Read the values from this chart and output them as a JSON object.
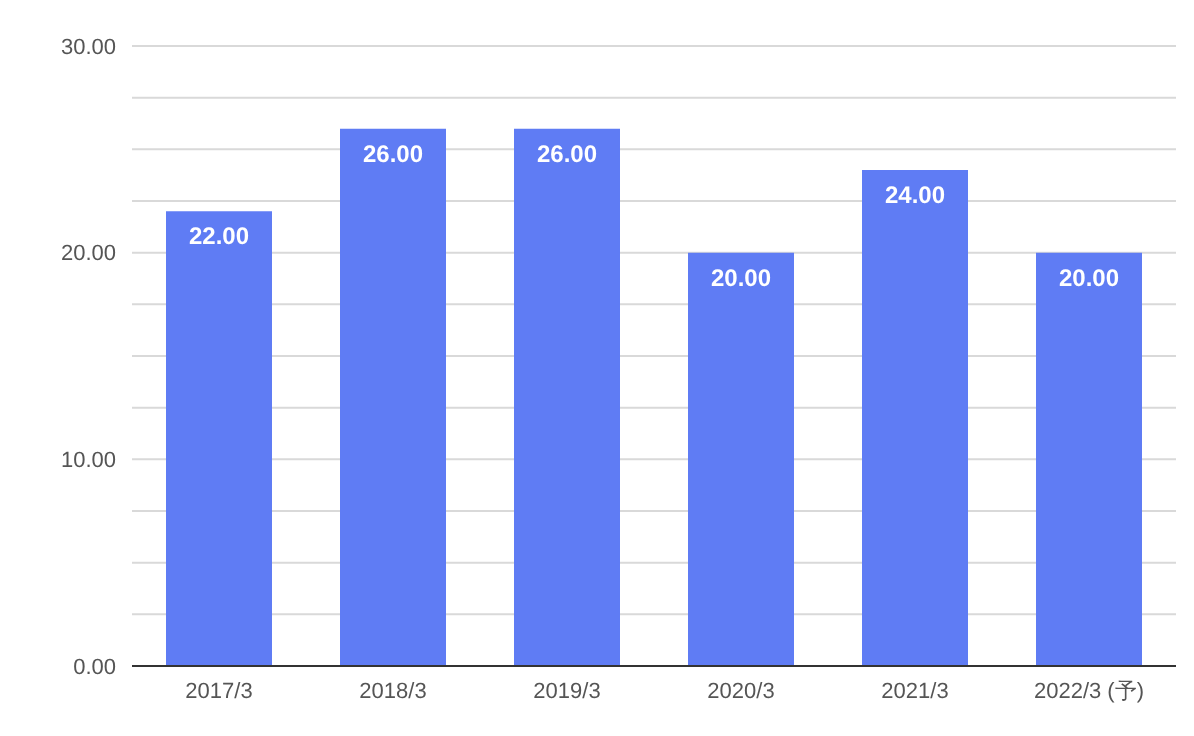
{
  "chart_data": {
    "type": "bar",
    "categories": [
      "2017/3",
      "2018/3",
      "2019/3",
      "2020/3",
      "2021/3",
      "2022/3 (予)"
    ],
    "values": [
      22,
      26,
      26,
      20,
      24,
      20
    ],
    "value_labels": [
      "22.00",
      "26.00",
      "26.00",
      "20.00",
      "24.00",
      "20.00"
    ],
    "color": "#5f7cf4",
    "ylim": [
      0,
      30
    ],
    "yticks": [
      {
        "value": 0,
        "label": "0.00"
      },
      {
        "value": 2.5,
        "label": null
      },
      {
        "value": 5,
        "label": null
      },
      {
        "value": 7.5,
        "label": null
      },
      {
        "value": 10,
        "label": "10.00"
      },
      {
        "value": 12.5,
        "label": null
      },
      {
        "value": 15,
        "label": null
      },
      {
        "value": 17.5,
        "label": null
      },
      {
        "value": 20,
        "label": "20.00"
      },
      {
        "value": 22.5,
        "label": null
      },
      {
        "value": 25,
        "label": null
      },
      {
        "value": 27.5,
        "label": null
      },
      {
        "value": 30,
        "label": "30.00"
      }
    ],
    "grid": "y"
  }
}
